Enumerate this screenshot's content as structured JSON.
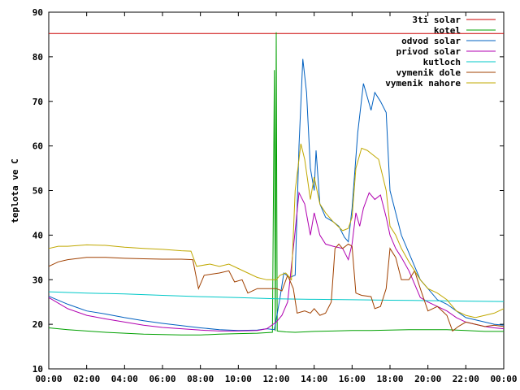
{
  "chart_data": {
    "type": "line",
    "ylabel": "teplota ve C",
    "xlabel": "",
    "title": "",
    "ylim": [
      10,
      90
    ],
    "xlim": [
      0,
      24
    ],
    "x_tick_labels": [
      "00:00",
      "02:00",
      "04:00",
      "06:00",
      "08:00",
      "10:00",
      "12:00",
      "14:00",
      "16:00",
      "18:00",
      "20:00",
      "22:00",
      "00:00"
    ],
    "y_tick_labels": [
      "10",
      "20",
      "30",
      "40",
      "50",
      "60",
      "70",
      "80",
      "90"
    ],
    "legend_position": "top-right",
    "grid": false,
    "series": [
      {
        "name": "3ti solar",
        "color": "#cc0000",
        "points": [
          [
            0,
            85.2
          ],
          [
            24,
            85.2
          ]
        ]
      },
      {
        "name": "kotel",
        "color": "#00a000",
        "points": [
          [
            0,
            19.2
          ],
          [
            1,
            18.8
          ],
          [
            2,
            18.5
          ],
          [
            3,
            18.2
          ],
          [
            4,
            18
          ],
          [
            5,
            17.8
          ],
          [
            6,
            17.7
          ],
          [
            7,
            17.6
          ],
          [
            8,
            17.6
          ],
          [
            9,
            17.8
          ],
          [
            10,
            17.9
          ],
          [
            11,
            18
          ],
          [
            11.8,
            18.2
          ],
          [
            11.9,
            77
          ],
          [
            11.95,
            18.5
          ],
          [
            12.0,
            85.5
          ],
          [
            12.05,
            18.5
          ],
          [
            12.5,
            18.3
          ],
          [
            13,
            18.2
          ],
          [
            14,
            18.4
          ],
          [
            15,
            18.5
          ],
          [
            16,
            18.6
          ],
          [
            17,
            18.6
          ],
          [
            18,
            18.7
          ],
          [
            19,
            18.8
          ],
          [
            20,
            18.8
          ],
          [
            21,
            18.8
          ],
          [
            22,
            18.6
          ],
          [
            23,
            18.4
          ],
          [
            24,
            18.4
          ]
        ]
      },
      {
        "name": "odvod solar",
        "color": "#0060c0",
        "points": [
          [
            0,
            26.3
          ],
          [
            1,
            24.5
          ],
          [
            2,
            23
          ],
          [
            3,
            22.3
          ],
          [
            4,
            21.5
          ],
          [
            5,
            20.8
          ],
          [
            6,
            20.2
          ],
          [
            7,
            19.7
          ],
          [
            8,
            19.2
          ],
          [
            9,
            18.8
          ],
          [
            10,
            18.6
          ],
          [
            11,
            18.7
          ],
          [
            11.5,
            19
          ],
          [
            11.9,
            18.8
          ],
          [
            12.2,
            26
          ],
          [
            12.4,
            31.5
          ],
          [
            12.7,
            30.5
          ],
          [
            13.0,
            31
          ],
          [
            13.2,
            60
          ],
          [
            13.4,
            79.5
          ],
          [
            13.6,
            72
          ],
          [
            13.8,
            55
          ],
          [
            14.0,
            50
          ],
          [
            14.1,
            59
          ],
          [
            14.3,
            47
          ],
          [
            14.6,
            44
          ],
          [
            15,
            43
          ],
          [
            15.3,
            42
          ],
          [
            15.6,
            39.5
          ],
          [
            15.8,
            38.5
          ],
          [
            16.0,
            46
          ],
          [
            16.3,
            63
          ],
          [
            16.6,
            74
          ],
          [
            16.8,
            71
          ],
          [
            17.0,
            68
          ],
          [
            17.2,
            72
          ],
          [
            17.5,
            70
          ],
          [
            17.8,
            67.5
          ],
          [
            18.0,
            50
          ],
          [
            18.3,
            45
          ],
          [
            18.6,
            40
          ],
          [
            19,
            36
          ],
          [
            19.3,
            33
          ],
          [
            19.6,
            30
          ],
          [
            20,
            28
          ],
          [
            20.5,
            25.5
          ],
          [
            21,
            24.5
          ],
          [
            21.5,
            23
          ],
          [
            22,
            21.5
          ],
          [
            22.5,
            21
          ],
          [
            23,
            20.5
          ],
          [
            23.5,
            20
          ],
          [
            24,
            19.8
          ]
        ]
      },
      {
        "name": "privod solar",
        "color": "#b000b0",
        "points": [
          [
            0,
            26
          ],
          [
            1,
            23.5
          ],
          [
            2,
            22
          ],
          [
            3,
            21.2
          ],
          [
            4,
            20.5
          ],
          [
            5,
            19.8
          ],
          [
            6,
            19.3
          ],
          [
            7,
            19
          ],
          [
            8,
            18.7
          ],
          [
            9,
            18.5
          ],
          [
            10,
            18.5
          ],
          [
            11,
            18.6
          ],
          [
            11.5,
            19
          ],
          [
            12,
            20.5
          ],
          [
            12.3,
            22
          ],
          [
            12.6,
            25
          ],
          [
            13.0,
            41
          ],
          [
            13.2,
            49.5
          ],
          [
            13.5,
            47
          ],
          [
            13.8,
            40
          ],
          [
            14.0,
            45
          ],
          [
            14.3,
            40
          ],
          [
            14.6,
            38
          ],
          [
            15,
            37.5
          ],
          [
            15.5,
            37
          ],
          [
            15.8,
            34.5
          ],
          [
            16,
            38
          ],
          [
            16.2,
            45
          ],
          [
            16.4,
            42
          ],
          [
            16.6,
            46
          ],
          [
            16.9,
            49.5
          ],
          [
            17.2,
            48
          ],
          [
            17.5,
            49
          ],
          [
            17.8,
            44
          ],
          [
            18.0,
            40
          ],
          [
            18.3,
            37
          ],
          [
            18.6,
            35
          ],
          [
            19,
            32
          ],
          [
            19.3,
            29
          ],
          [
            19.6,
            26
          ],
          [
            20,
            25
          ],
          [
            20.5,
            24
          ],
          [
            21,
            23
          ],
          [
            21.5,
            21.5
          ],
          [
            22,
            20.5
          ],
          [
            22.5,
            20
          ],
          [
            23,
            19.5
          ],
          [
            23.5,
            19.2
          ],
          [
            24,
            19
          ]
        ]
      },
      {
        "name": "kutloch",
        "color": "#00c8c8",
        "points": [
          [
            0,
            27.3
          ],
          [
            2,
            27
          ],
          [
            4,
            26.8
          ],
          [
            6,
            26.5
          ],
          [
            8,
            26.2
          ],
          [
            10,
            26
          ],
          [
            12,
            25.7
          ],
          [
            14,
            25.6
          ],
          [
            16,
            25.5
          ],
          [
            18,
            25.4
          ],
          [
            20,
            25.3
          ],
          [
            22,
            25.2
          ],
          [
            24,
            25.1
          ]
        ]
      },
      {
        "name": "vymenik dole",
        "color": "#a04000",
        "points": [
          [
            0,
            33
          ],
          [
            0.5,
            34
          ],
          [
            1,
            34.5
          ],
          [
            2,
            35
          ],
          [
            3,
            35
          ],
          [
            4,
            34.8
          ],
          [
            5,
            34.7
          ],
          [
            6,
            34.6
          ],
          [
            7,
            34.6
          ],
          [
            7.6,
            34.5
          ],
          [
            7.9,
            28
          ],
          [
            8.2,
            31
          ],
          [
            9,
            31.5
          ],
          [
            9.5,
            32
          ],
          [
            9.8,
            29.5
          ],
          [
            10.2,
            30
          ],
          [
            10.5,
            27
          ],
          [
            11,
            28
          ],
          [
            11.5,
            28
          ],
          [
            12,
            28
          ],
          [
            12.3,
            27.5
          ],
          [
            12.6,
            31
          ],
          [
            12.9,
            28
          ],
          [
            13.1,
            22.5
          ],
          [
            13.5,
            23
          ],
          [
            13.8,
            22.5
          ],
          [
            14.0,
            23.5
          ],
          [
            14.3,
            22
          ],
          [
            14.6,
            22.5
          ],
          [
            14.9,
            25
          ],
          [
            15.1,
            37
          ],
          [
            15.3,
            38
          ],
          [
            15.5,
            37
          ],
          [
            15.8,
            38
          ],
          [
            16,
            37.5
          ],
          [
            16.2,
            27
          ],
          [
            16.5,
            26.5
          ],
          [
            17,
            26.2
          ],
          [
            17.2,
            23.5
          ],
          [
            17.5,
            24
          ],
          [
            17.8,
            28
          ],
          [
            18,
            37
          ],
          [
            18.3,
            35
          ],
          [
            18.6,
            30
          ],
          [
            19,
            30
          ],
          [
            19.3,
            32
          ],
          [
            19.6,
            28
          ],
          [
            20,
            23
          ],
          [
            20.5,
            24
          ],
          [
            21,
            22
          ],
          [
            21.3,
            18.5
          ],
          [
            21.6,
            19.5
          ],
          [
            22,
            20.5
          ],
          [
            22.5,
            20
          ],
          [
            23,
            19.5
          ],
          [
            23.5,
            19.8
          ],
          [
            24,
            19.5
          ]
        ]
      },
      {
        "name": "vymenik nahore",
        "color": "#c0a800",
        "points": [
          [
            0,
            37
          ],
          [
            0.5,
            37.5
          ],
          [
            1,
            37.5
          ],
          [
            2,
            37.8
          ],
          [
            3,
            37.7
          ],
          [
            4,
            37.3
          ],
          [
            5,
            37
          ],
          [
            6,
            36.8
          ],
          [
            7,
            36.5
          ],
          [
            7.5,
            36.4
          ],
          [
            7.8,
            33
          ],
          [
            8.5,
            33.5
          ],
          [
            9,
            33
          ],
          [
            9.5,
            33.5
          ],
          [
            10,
            32.5
          ],
          [
            10.5,
            31.5
          ],
          [
            11,
            30.5
          ],
          [
            11.5,
            30
          ],
          [
            12,
            30
          ],
          [
            12.2,
            31
          ],
          [
            12.5,
            31.5
          ],
          [
            12.8,
            30
          ],
          [
            13.0,
            50
          ],
          [
            13.3,
            60.5
          ],
          [
            13.5,
            57
          ],
          [
            13.8,
            48
          ],
          [
            14.0,
            53
          ],
          [
            14.3,
            47
          ],
          [
            14.6,
            45
          ],
          [
            15,
            43
          ],
          [
            15.5,
            41
          ],
          [
            15.8,
            41.5
          ],
          [
            16,
            44
          ],
          [
            16.2,
            55
          ],
          [
            16.5,
            59.5
          ],
          [
            16.8,
            59
          ],
          [
            17.1,
            58
          ],
          [
            17.4,
            57
          ],
          [
            17.8,
            50
          ],
          [
            18.0,
            42
          ],
          [
            18.3,
            40
          ],
          [
            18.6,
            37
          ],
          [
            19,
            34
          ],
          [
            19.3,
            32
          ],
          [
            19.6,
            30
          ],
          [
            20,
            28
          ],
          [
            20.5,
            27
          ],
          [
            21,
            25.5
          ],
          [
            21.5,
            23
          ],
          [
            22,
            22
          ],
          [
            22.5,
            21.5
          ],
          [
            23,
            22
          ],
          [
            23.5,
            22.5
          ],
          [
            24,
            23.5
          ]
        ]
      }
    ]
  }
}
